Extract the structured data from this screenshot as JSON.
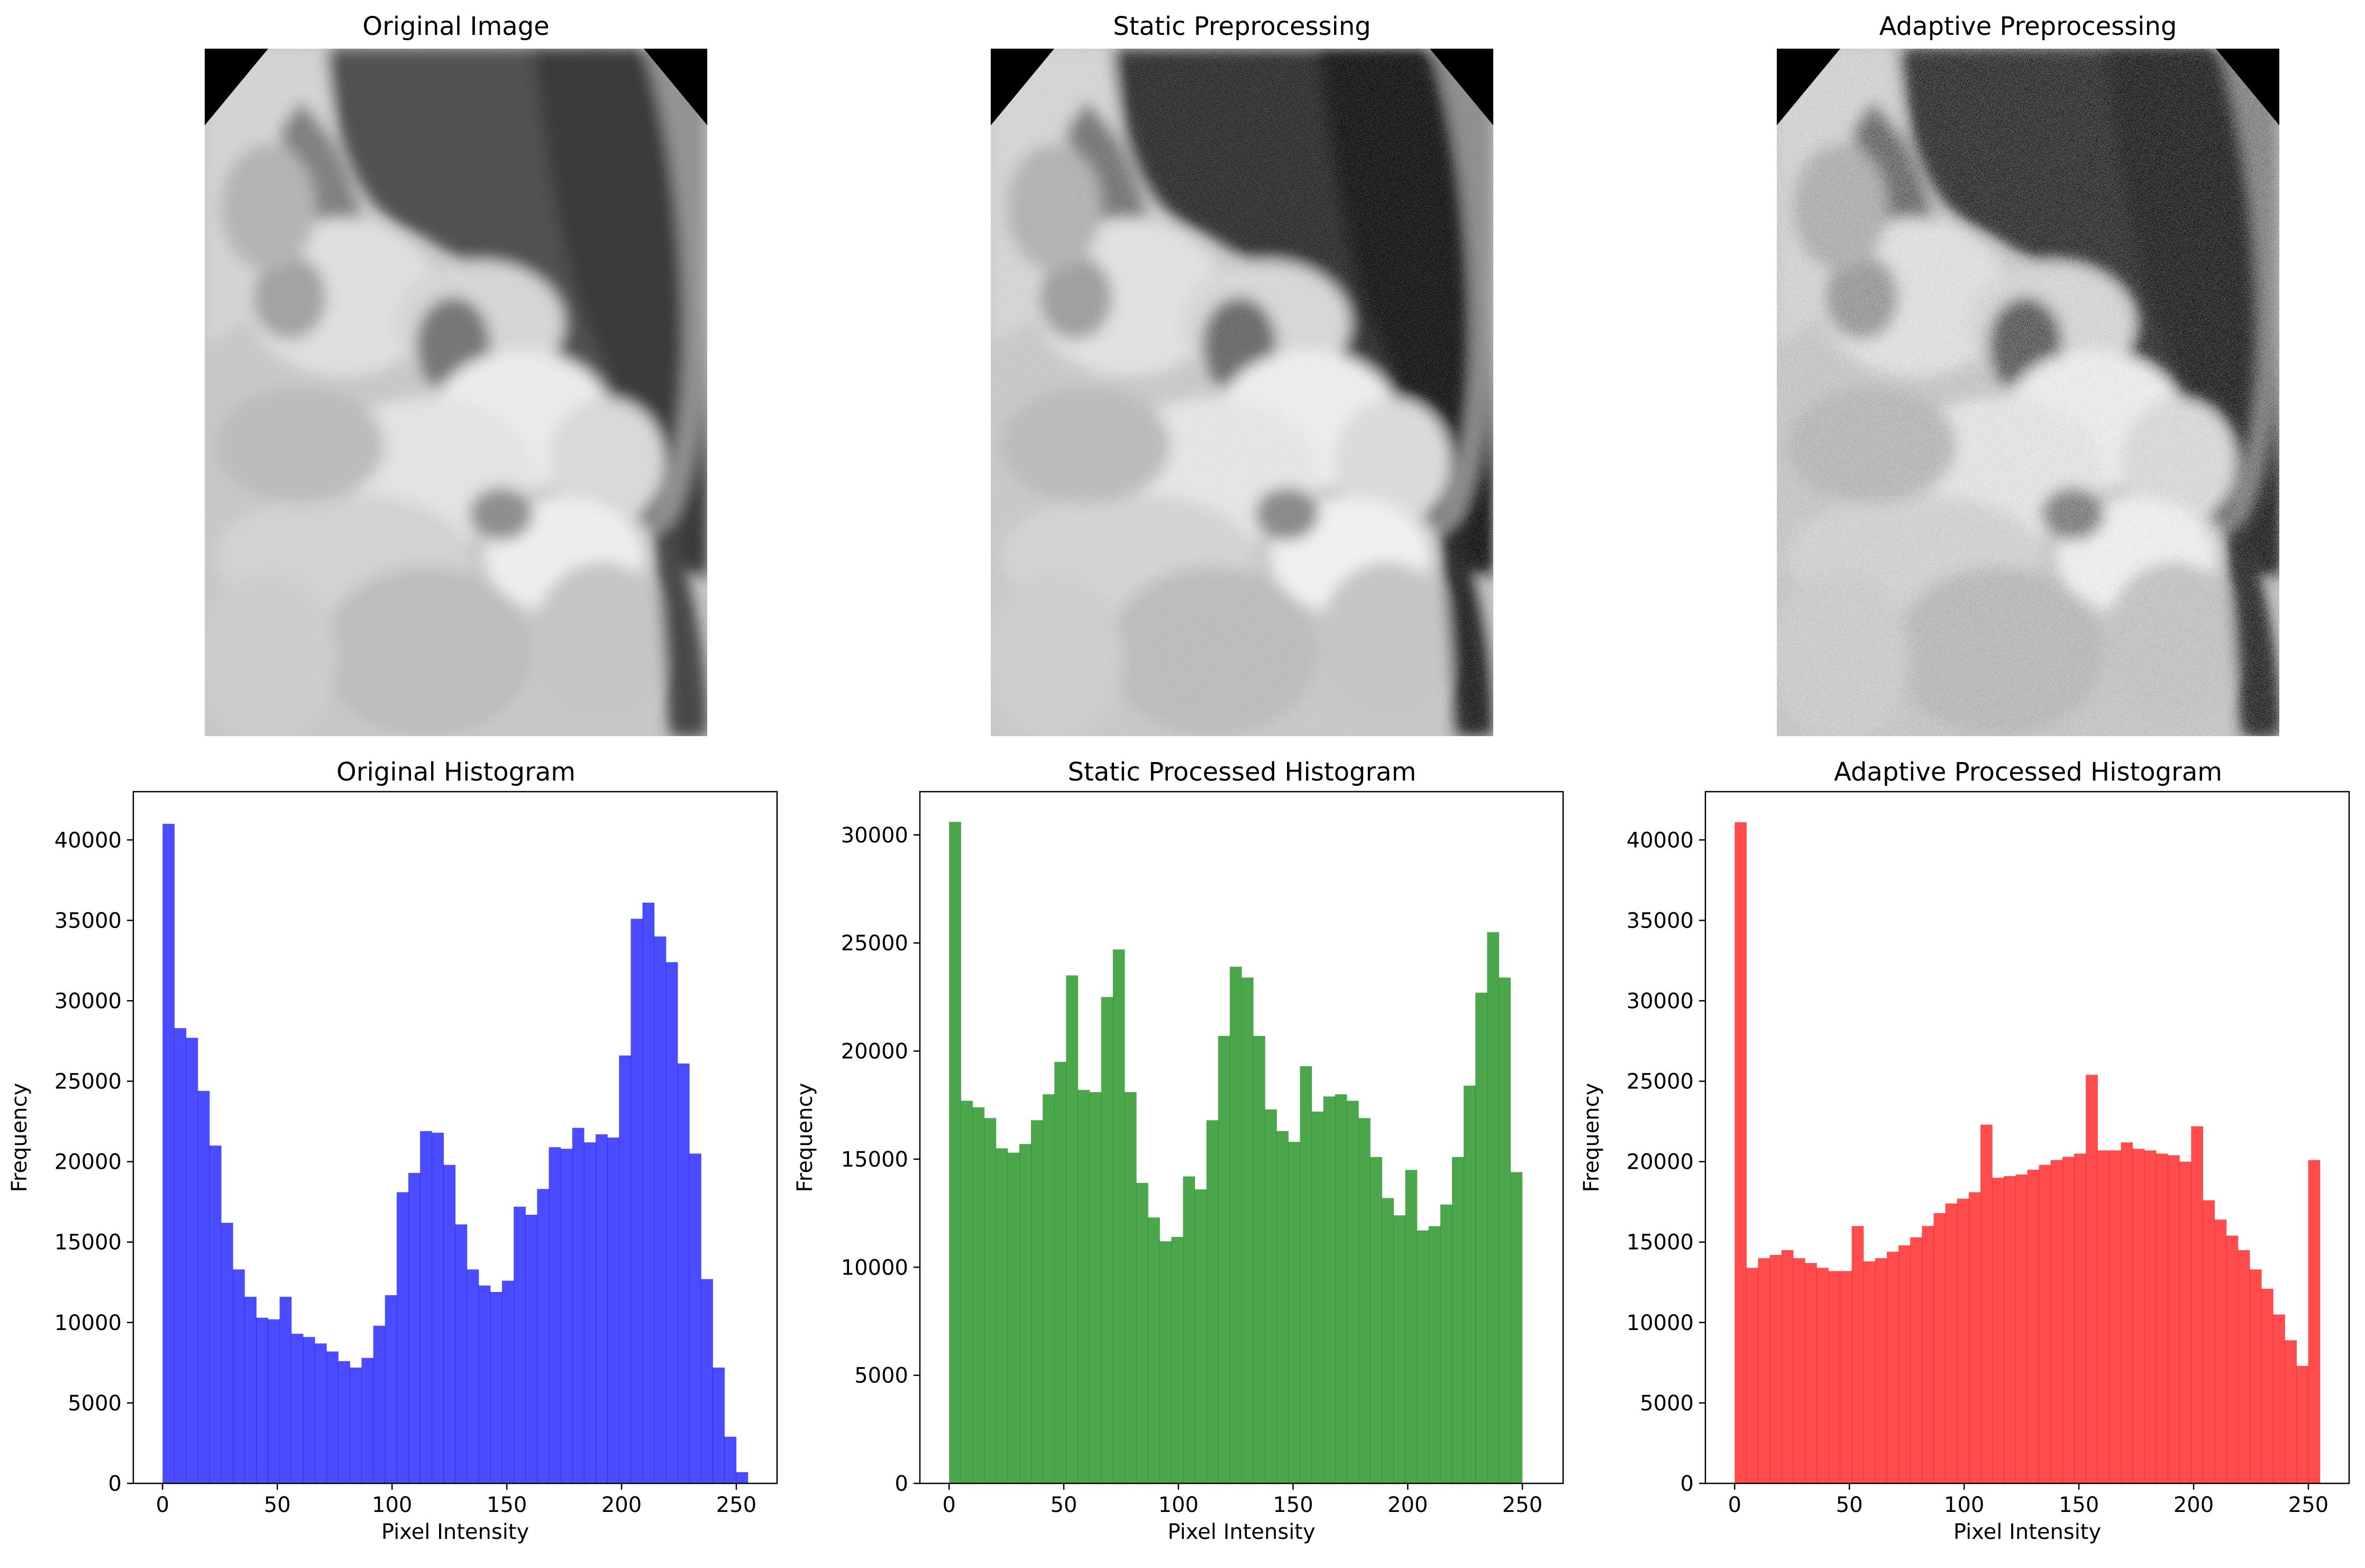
{
  "image_panels": [
    {
      "title": "Original Image",
      "style": "original"
    },
    {
      "title": "Static Preprocessing",
      "style": "static"
    },
    {
      "title": "Adaptive Preprocessing",
      "style": "adaptive"
    }
  ],
  "chart_data": [
    {
      "type": "bar",
      "title": "Original Histogram",
      "xlabel": "Pixel Intensity",
      "ylabel": "Frequency",
      "color": "#0000ff",
      "alpha": 0.7,
      "bins": 50,
      "bin_range": [
        0,
        255
      ],
      "xlim": [
        -12.75,
        267.75
      ],
      "ylim": [
        0,
        43000
      ],
      "xticks": [
        0,
        50,
        100,
        150,
        200,
        250
      ],
      "yticks": [
        0,
        5000,
        10000,
        15000,
        20000,
        25000,
        30000,
        35000,
        40000
      ],
      "values": [
        41000,
        28300,
        27700,
        24400,
        21000,
        16200,
        13300,
        11600,
        10300,
        10200,
        11600,
        9300,
        9100,
        8700,
        8200,
        7600,
        7200,
        7800,
        9800,
        11700,
        18100,
        19300,
        21900,
        21800,
        19800,
        16100,
        13300,
        12300,
        11900,
        12600,
        17200,
        16700,
        18300,
        20900,
        20800,
        22100,
        21200,
        21700,
        21500,
        26600,
        35100,
        36100,
        34000,
        32400,
        26100,
        20500,
        12700,
        7200,
        2900,
        700
      ]
    },
    {
      "type": "bar",
      "title": "Static Processed Histogram",
      "xlabel": "Pixel Intensity",
      "ylabel": "Frequency",
      "color": "#008000",
      "alpha": 0.7,
      "bins": 50,
      "bin_range": [
        0,
        255
      ],
      "xlim": [
        -12.75,
        267.75
      ],
      "ylim": [
        0,
        32000
      ],
      "xticks": [
        0,
        50,
        100,
        150,
        200,
        250
      ],
      "yticks": [
        0,
        5000,
        10000,
        15000,
        20000,
        25000,
        30000
      ],
      "values": [
        30600,
        17700,
        17400,
        16900,
        15500,
        15300,
        15700,
        16800,
        18000,
        19500,
        23500,
        18200,
        18100,
        22500,
        24700,
        18100,
        13900,
        12300,
        11200,
        11400,
        14200,
        13600,
        16800,
        20700,
        23900,
        23400,
        20700,
        17300,
        16300,
        15800,
        19300,
        17200,
        17900,
        18000,
        17700,
        16900,
        15100,
        13200,
        12400,
        14500,
        11700,
        11900,
        12900,
        15100,
        18400,
        22700,
        25500,
        23400,
        14400,
        0
      ]
    },
    {
      "type": "bar",
      "title": "Adaptive Processed Histogram",
      "xlabel": "Pixel Intensity",
      "ylabel": "Frequency",
      "color": "#ff0000",
      "alpha": 0.7,
      "bins": 50,
      "bin_range": [
        0,
        255
      ],
      "xlim": [
        -12.75,
        267.75
      ],
      "ylim": [
        0,
        43000
      ],
      "xticks": [
        0,
        50,
        100,
        150,
        200,
        250
      ],
      "yticks": [
        0,
        5000,
        10000,
        15000,
        20000,
        25000,
        30000,
        35000,
        40000
      ],
      "values": [
        41100,
        13400,
        14000,
        14200,
        14500,
        14000,
        13700,
        13400,
        13200,
        13200,
        16000,
        13800,
        14000,
        14400,
        14800,
        15300,
        16000,
        16800,
        17400,
        17700,
        18100,
        22300,
        19000,
        19100,
        19200,
        19500,
        19800,
        20100,
        20300,
        20500,
        25400,
        20700,
        20700,
        21200,
        20800,
        20700,
        20500,
        20400,
        20000,
        22200,
        17600,
        16400,
        15400,
        14500,
        13300,
        12100,
        10500,
        8900,
        7300,
        20100
      ]
    }
  ]
}
